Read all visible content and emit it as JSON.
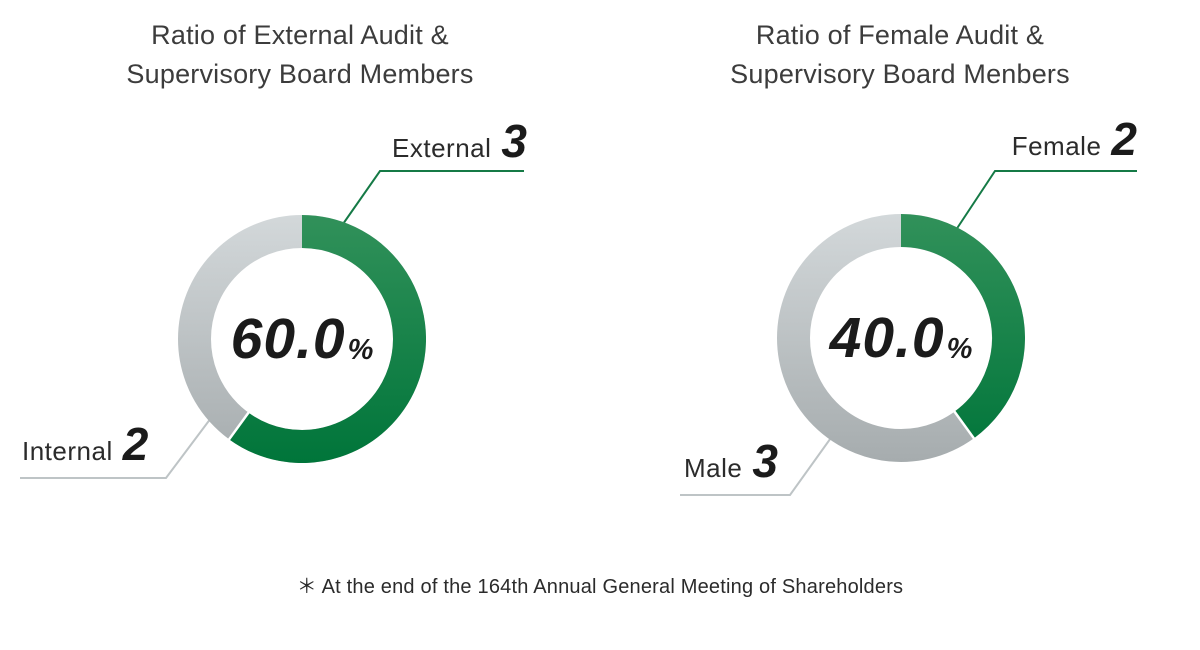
{
  "palette": {
    "background": "#FFFFFF",
    "green_top": "#31915A",
    "green_bottom": "#00753A",
    "gray_top": "#D3D8DA",
    "gray_bottom": "#A6ACAE",
    "green_line": "#157A46",
    "gray_line": "#BEC4C6",
    "title_text": "#3C3C3C",
    "label_text": "#2B2B2B",
    "number_text": "#1B1B1B"
  },
  "charts": [
    {
      "title_line1": "Ratio of External Audit &",
      "title_line2": "Supervisory Board Members",
      "center_value": "60.0",
      "center_unit": "%",
      "callout_primary": {
        "label": "External",
        "value": "3"
      },
      "callout_secondary": {
        "label": "Internal",
        "value": "2"
      }
    },
    {
      "title_line1": "Ratio of Female Audit &",
      "title_line2": "Supervisory Board Menbers",
      "center_value": "40.0",
      "center_unit": "%",
      "callout_primary": {
        "label": "Female",
        "value": "2"
      },
      "callout_secondary": {
        "label": "Male",
        "value": "3"
      }
    }
  ],
  "footer": {
    "note": "＊ At the end of the 164th Annual General Meeting of Shareholders"
  },
  "chart_data": [
    {
      "type": "pie",
      "subtype": "donut",
      "title": "Ratio of External Audit & Supervisory Board Members",
      "categories": [
        "External",
        "Internal"
      ],
      "values": [
        3,
        2
      ],
      "center_label": "60.0%",
      "highlight_percent": 60.0,
      "start_angle_deg": 0,
      "direction": "clockwise",
      "legend_position": "callouts",
      "colors": {
        "External": "#0E7C40",
        "Internal": "#BDC3C5"
      }
    },
    {
      "type": "pie",
      "subtype": "donut",
      "title": "Ratio of Female Audit & Supervisory Board Menbers",
      "categories": [
        "Female",
        "Male"
      ],
      "values": [
        2,
        3
      ],
      "center_label": "40.0%",
      "highlight_percent": 40.0,
      "start_angle_deg": 0,
      "direction": "clockwise",
      "legend_position": "callouts",
      "colors": {
        "Female": "#0E7C40",
        "Male": "#BDC3C5"
      }
    }
  ]
}
